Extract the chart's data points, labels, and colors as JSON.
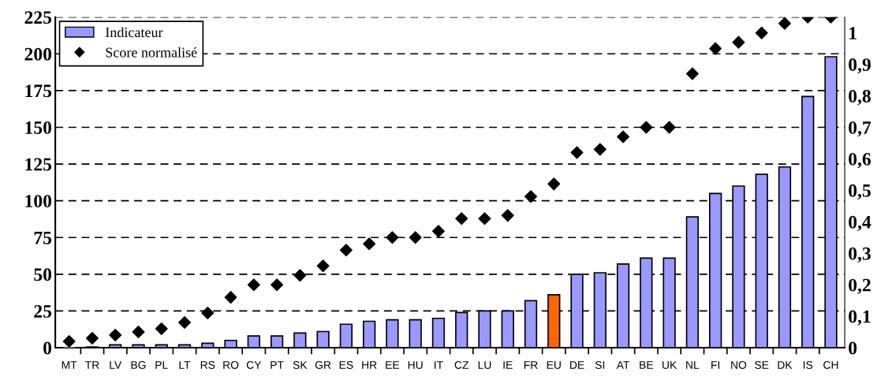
{
  "chart_data": {
    "type": "bar",
    "categories": [
      "MT",
      "TR",
      "LV",
      "BG",
      "PL",
      "LT",
      "RS",
      "RO",
      "CY",
      "PT",
      "SK",
      "GR",
      "ES",
      "HR",
      "EE",
      "HU",
      "IT",
      "CZ",
      "LU",
      "IE",
      "FR",
      "EU",
      "DE",
      "SI",
      "AT",
      "BE",
      "UK",
      "NL",
      "FI",
      "NO",
      "SE",
      "DK",
      "IS",
      "CH"
    ],
    "series": [
      {
        "name": "Indicateur",
        "color": "#9999ff",
        "colors": [
          "#9999ff",
          "#9999ff",
          "#9999ff",
          "#9999ff",
          "#9999ff",
          "#9999ff",
          "#9999ff",
          "#9999ff",
          "#9999ff",
          "#9999ff",
          "#9999ff",
          "#9999ff",
          "#9999ff",
          "#9999ff",
          "#9999ff",
          "#9999ff",
          "#9999ff",
          "#9999ff",
          "#9999ff",
          "#9999ff",
          "#9999ff",
          "#ff6600",
          "#9999ff",
          "#9999ff",
          "#9999ff",
          "#9999ff",
          "#9999ff",
          "#9999ff",
          "#9999ff",
          "#9999ff",
          "#9999ff",
          "#9999ff",
          "#9999ff",
          "#9999ff"
        ],
        "values": [
          0,
          0.5,
          2,
          2,
          2,
          2,
          3,
          5,
          8,
          8,
          10,
          11,
          16,
          18,
          19,
          19,
          20,
          24,
          25,
          25,
          32,
          36,
          50,
          51,
          57,
          61,
          61,
          89,
          105,
          110,
          118,
          123,
          171,
          198
        ]
      },
      {
        "name": "Score normalisé",
        "type": "scatter",
        "axis": "y2",
        "color": "#000000",
        "marker": "diamond",
        "values": [
          0.02,
          0.03,
          0.04,
          0.05,
          0.06,
          0.08,
          0.11,
          0.16,
          0.2,
          0.2,
          0.23,
          0.26,
          0.31,
          0.33,
          0.35,
          0.35,
          0.37,
          0.41,
          0.41,
          0.42,
          0.48,
          0.52,
          0.62,
          0.63,
          0.67,
          0.7,
          0.7,
          0.87,
          0.95,
          0.97,
          1.0,
          1.03,
          1.05,
          1.05
        ]
      }
    ],
    "ylim": [
      0,
      225
    ],
    "yticks": [
      0,
      25,
      50,
      75,
      100,
      125,
      150,
      175,
      200,
      225
    ],
    "y2lim": [
      0,
      1.05
    ],
    "y2ticks": [
      0,
      {
        "value": 0.1,
        "label": "0,1"
      },
      {
        "value": 0.2,
        "label": "0,2"
      },
      {
        "value": 0.3,
        "label": "0,3"
      },
      {
        "value": 0.4,
        "label": "0,4"
      },
      {
        "value": 0.5,
        "label": "0,5"
      },
      {
        "value": 0.6,
        "label": "0,6"
      },
      {
        "value": 0.7,
        "label": "0,7"
      },
      {
        "value": 0.8,
        "label": "0,8"
      },
      {
        "value": 0.9,
        "label": "0,9"
      },
      1
    ],
    "grid": "y",
    "legend": "top left"
  }
}
